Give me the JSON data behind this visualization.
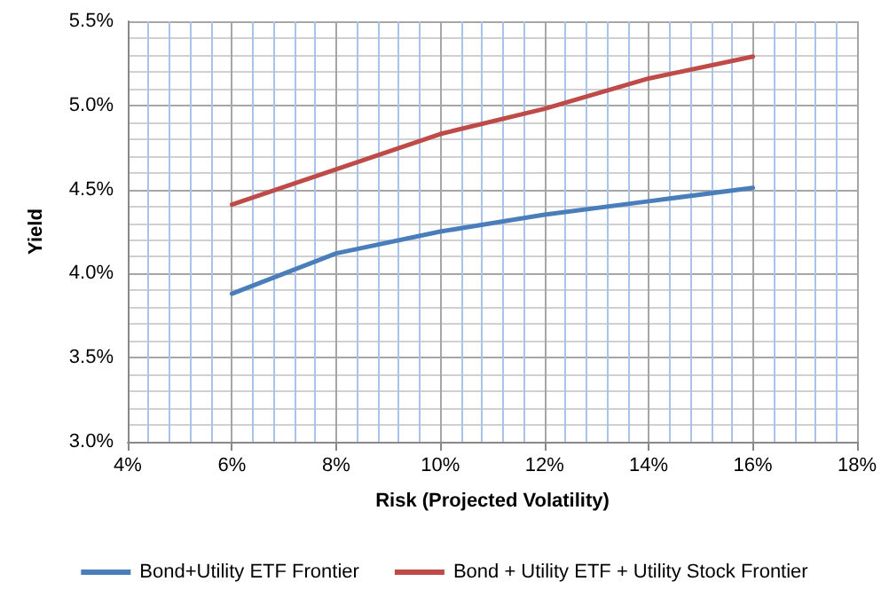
{
  "chart_data": {
    "type": "line",
    "xlabel": "Risk (Projected Volatility)",
    "ylabel": "Yield",
    "x": [
      6,
      8,
      10,
      12,
      14,
      16
    ],
    "series": [
      {
        "name": "Bond+Utility ETF Frontier",
        "color": "#4a7ebb",
        "values": [
          3.88,
          4.12,
          4.25,
          4.35,
          4.43,
          4.51
        ]
      },
      {
        "name": "Bond + Utility ETF + Utility Stock Frontier",
        "color": "#be4b48",
        "values": [
          4.41,
          4.62,
          4.83,
          4.98,
          5.16,
          5.29
        ]
      }
    ],
    "xlim": [
      4,
      18
    ],
    "xticks": [
      {
        "value": 4,
        "label": "4%"
      },
      {
        "value": 4.4,
        "label": null
      },
      {
        "value": 4.8,
        "label": null
      },
      {
        "value": 5.2,
        "label": null
      },
      {
        "value": 5.6,
        "label": null
      },
      {
        "value": 6,
        "label": "6%"
      },
      {
        "value": 6.4,
        "label": null
      },
      {
        "value": 6.8,
        "label": null
      },
      {
        "value": 7.2,
        "label": null
      },
      {
        "value": 7.6,
        "label": null
      },
      {
        "value": 8,
        "label": "8%"
      },
      {
        "value": 8.4,
        "label": null
      },
      {
        "value": 8.8,
        "label": null
      },
      {
        "value": 9.2,
        "label": null
      },
      {
        "value": 9.6,
        "label": null
      },
      {
        "value": 10,
        "label": "10%"
      },
      {
        "value": 10.4,
        "label": null
      },
      {
        "value": 10.8,
        "label": null
      },
      {
        "value": 11.2,
        "label": null
      },
      {
        "value": 11.6,
        "label": null
      },
      {
        "value": 12,
        "label": "12%"
      },
      {
        "value": 12.4,
        "label": null
      },
      {
        "value": 12.8,
        "label": null
      },
      {
        "value": 13.2,
        "label": null
      },
      {
        "value": 13.6,
        "label": null
      },
      {
        "value": 14,
        "label": "14%"
      },
      {
        "value": 14.4,
        "label": null
      },
      {
        "value": 14.8,
        "label": null
      },
      {
        "value": 15.2,
        "label": null
      },
      {
        "value": 15.6,
        "label": null
      },
      {
        "value": 16,
        "label": "16%"
      },
      {
        "value": 16.4,
        "label": null
      },
      {
        "value": 16.8,
        "label": null
      },
      {
        "value": 17.2,
        "label": null
      },
      {
        "value": 17.6,
        "label": null
      },
      {
        "value": 18,
        "label": "18%"
      }
    ],
    "ylim": [
      3.0,
      5.5
    ],
    "yticks": [
      {
        "value": 3.0,
        "label": "3.0%"
      },
      {
        "value": 3.1,
        "label": null
      },
      {
        "value": 3.2,
        "label": null
      },
      {
        "value": 3.3,
        "label": null
      },
      {
        "value": 3.4,
        "label": null
      },
      {
        "value": 3.5,
        "label": "3.5%"
      },
      {
        "value": 3.6,
        "label": null
      },
      {
        "value": 3.7,
        "label": null
      },
      {
        "value": 3.8,
        "label": null
      },
      {
        "value": 3.9,
        "label": null
      },
      {
        "value": 4.0,
        "label": "4.0%"
      },
      {
        "value": 4.1,
        "label": null
      },
      {
        "value": 4.2,
        "label": null
      },
      {
        "value": 4.3,
        "label": null
      },
      {
        "value": 4.4,
        "label": null
      },
      {
        "value": 4.5,
        "label": "4.5%"
      },
      {
        "value": 4.6,
        "label": null
      },
      {
        "value": 4.7,
        "label": null
      },
      {
        "value": 4.8,
        "label": null
      },
      {
        "value": 4.9,
        "label": null
      },
      {
        "value": 5.0,
        "label": "5.0%"
      },
      {
        "value": 5.1,
        "label": null
      },
      {
        "value": 5.2,
        "label": null
      },
      {
        "value": 5.3,
        "label": null
      },
      {
        "value": 5.4,
        "label": null
      },
      {
        "value": 5.5,
        "label": "5.5%"
      }
    ],
    "grid": true,
    "legend": "bottom",
    "marker": "none",
    "line_style": "solid"
  }
}
